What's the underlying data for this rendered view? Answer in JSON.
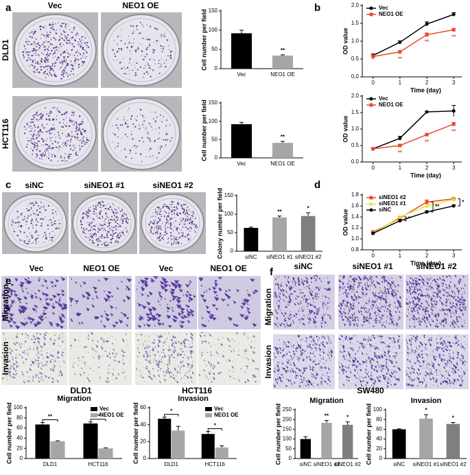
{
  "labels": {
    "panels": [
      "a",
      "b",
      "c",
      "d",
      "e",
      "f"
    ],
    "a_columns": [
      "Vec",
      "NEO1 OE"
    ],
    "a_rows": [
      "DLD1",
      "HCT116"
    ],
    "c_columns": [
      "siNC",
      "siNEO1 #1",
      "siNEO1 #2"
    ],
    "e_columns": [
      "Vec",
      "NEO1 OE",
      "Vec",
      "NEO1 OE"
    ],
    "e_rows": [
      "Migration",
      "Invasion"
    ],
    "e_cells": [
      "DLD1",
      "HCT116"
    ],
    "f_columns": [
      "siNC",
      "siNEO1 #1",
      "siNEO1 #2"
    ],
    "f_rows": [
      "Migration",
      "Invasion"
    ],
    "f_cell": "SW480"
  },
  "chart_data": [
    {
      "type": "bar",
      "ylabel": "Cell number per field",
      "categories": [
        "Vec",
        "NEO1 OE"
      ],
      "values": [
        92,
        34
      ],
      "errors": [
        8,
        2
      ],
      "colors": [
        "#000000",
        "#a6a6a6"
      ],
      "significance": [
        null,
        "**"
      ],
      "ylim": [
        0,
        150
      ],
      "yticks": [
        0,
        50,
        100,
        150
      ]
    },
    {
      "type": "bar",
      "ylabel": "Cell number per field",
      "categories": [
        "Vec",
        "NEO1 OE"
      ],
      "values": [
        92,
        41
      ],
      "errors": [
        5,
        4
      ],
      "colors": [
        "#000000",
        "#a6a6a6"
      ],
      "significance": [
        null,
        "**"
      ],
      "ylim": [
        0,
        150
      ],
      "yticks": [
        0,
        50,
        100,
        150
      ]
    },
    {
      "type": "line",
      "xlabel": "Time (day)",
      "ylabel": "OD value",
      "x": [
        0,
        1,
        2,
        3
      ],
      "xlim": [
        -0.4,
        3.3
      ],
      "xticks": [
        0,
        1,
        2,
        3
      ],
      "ylim": [
        0,
        2
      ],
      "yticks": [
        {
          "value": 0,
          "label": "0.0"
        },
        0.5,
        {
          "value": 1,
          "label": "1.0"
        },
        1.5,
        {
          "value": 2,
          "label": "2.0"
        }
      ],
      "legend": "upper left",
      "series": [
        {
          "name": "Vec",
          "color": "#000000",
          "marker": "circle",
          "values": [
            0.6,
            0.97,
            1.48,
            1.75
          ],
          "errors": [
            0.05,
            0.04,
            0.06,
            0.05
          ]
        },
        {
          "name": "NEO1 OE",
          "color": "#e8492c",
          "marker": "square",
          "values": [
            0.57,
            0.7,
            1.18,
            1.32
          ],
          "errors": [
            0.08,
            0.03,
            0.05,
            0.03
          ],
          "significance": [
            null,
            "**",
            "**",
            "**"
          ]
        }
      ]
    },
    {
      "type": "line",
      "xlabel": "Time (day)",
      "ylabel": "OD value",
      "x": [
        0,
        1,
        2,
        3
      ],
      "xlim": [
        -0.4,
        3.3
      ],
      "xticks": [
        0,
        1,
        2,
        3
      ],
      "ylim": [
        0,
        2
      ],
      "yticks": [
        {
          "value": 0,
          "label": "0.0"
        },
        0.5,
        {
          "value": 1,
          "label": "1.0"
        },
        1.5,
        {
          "value": 2,
          "label": "2.0"
        }
      ],
      "legend": "upper left",
      "series": [
        {
          "name": "Vec",
          "color": "#000000",
          "marker": "circle",
          "values": [
            0.4,
            0.72,
            1.52,
            1.55
          ],
          "errors": [
            0.03,
            0.06,
            0.01,
            0.17
          ]
        },
        {
          "name": "NEO1 OE",
          "color": "#e8492c",
          "marker": "square",
          "values": [
            0.4,
            0.5,
            0.83,
            1.15
          ],
          "errors": [
            0.03,
            0.04,
            0.03,
            0.05
          ],
          "significance": [
            null,
            "**",
            "**",
            "**"
          ]
        }
      ]
    },
    {
      "type": "bar",
      "ylabel": "Colony number per field",
      "categories": [
        "siNC",
        "siNEO1 #1",
        "siNEO1 #2"
      ],
      "values": [
        63,
        91,
        95
      ],
      "errors": [
        2,
        4,
        9
      ],
      "colors": [
        "#000000",
        "#a6a6a6",
        "#7f7f7f"
      ],
      "significance": [
        null,
        "**",
        "*"
      ],
      "ylim": [
        0,
        150
      ],
      "yticks": [
        0,
        50,
        100,
        150
      ]
    },
    {
      "type": "line",
      "xlabel": "Time (day)",
      "ylabel": "OD value",
      "x": [
        0,
        1,
        2,
        3
      ],
      "xlim": [
        -0.4,
        3.3
      ],
      "xticks": [
        0,
        1,
        2,
        3
      ],
      "ylim": [
        0.8,
        1.8
      ],
      "yticks": [
        0.8,
        {
          "value": 1,
          "label": "1.0"
        },
        1.2,
        1.4,
        1.6,
        1.8
      ],
      "legend": "upper left",
      "significance": [
        null,
        "*",
        "**",
        "*"
      ],
      "series": [
        {
          "name": "siNEO1 #2",
          "color": "#e8492c",
          "marker": "square",
          "values": [
            1.12,
            1.38,
            1.67,
            1.73
          ],
          "errors": [
            0.03,
            0.02,
            0.04,
            0.03
          ]
        },
        {
          "name": "siNEO1 #1",
          "color": "#f2e22e",
          "marker": "triangle",
          "values": [
            1.1,
            1.4,
            1.6,
            1.72
          ],
          "errors": [
            0.03,
            0.02,
            0.03,
            0.04
          ]
        },
        {
          "name": "siNC",
          "color": "#000000",
          "marker": "circle",
          "values": [
            1.1,
            1.33,
            1.49,
            1.6
          ],
          "errors": [
            0.02,
            0.02,
            0.02,
            0.02
          ]
        }
      ]
    },
    {
      "type": "bar",
      "title": "Migration",
      "ylabel": "Cell number per field",
      "categories": [
        "DLD1",
        "HCT116"
      ],
      "series": [
        {
          "name": "Vec",
          "color": "#000000",
          "values": [
            67,
            69
          ],
          "errors": [
            4,
            3
          ]
        },
        {
          "name": "NEO1 OE",
          "color": "#a6a6a6",
          "values": [
            34,
            20
          ],
          "errors": [
            1,
            1
          ]
        }
      ],
      "significance": [
        "**",
        "**"
      ],
      "ylim": [
        0,
        100
      ],
      "yticks": [
        0,
        20,
        40,
        60,
        80,
        100
      ],
      "legend": "upper right"
    },
    {
      "type": "bar",
      "title": "Invasion",
      "ylabel": "Cell number per field",
      "categories": [
        "DLD1",
        "HCT116"
      ],
      "series": [
        {
          "name": "Vec",
          "color": "#000000",
          "values": [
            47,
            29
          ],
          "errors": [
            2,
            3
          ]
        },
        {
          "name": "NEO1 OE",
          "color": "#a6a6a6",
          "values": [
            33,
            13
          ],
          "errors": [
            5,
            2
          ]
        }
      ],
      "significance": [
        "*",
        "*"
      ],
      "ylim": [
        0,
        60
      ],
      "yticks": [
        0,
        20,
        40,
        60
      ],
      "legend": "upper right"
    },
    {
      "type": "bar",
      "title": "Migration",
      "ylabel": "Cell number per field",
      "categories": [
        "siNC",
        "siNEO1 #1",
        "siNEO1 #2"
      ],
      "values": [
        100,
        183,
        173
      ],
      "errors": [
        12,
        12,
        15
      ],
      "colors": [
        "#000000",
        "#a6a6a6",
        "#7f7f7f"
      ],
      "significance": [
        null,
        "**",
        "*"
      ],
      "ylim": [
        0,
        250
      ],
      "yticks": [
        0,
        50,
        100,
        150,
        200,
        250
      ]
    },
    {
      "type": "bar",
      "title": "Invasion",
      "ylabel": "Cell number per field",
      "categories": [
        "siNC",
        "siNEO1 #1",
        "siNEO1 #2"
      ],
      "values": [
        60,
        82,
        71
      ],
      "errors": [
        1,
        8,
        3
      ],
      "colors": [
        "#000000",
        "#a6a6a6",
        "#7f7f7f"
      ],
      "significance": [
        null,
        "*",
        "*"
      ],
      "ylim": [
        0,
        100
      ],
      "yticks": [
        0,
        20,
        40,
        60,
        80,
        100
      ]
    }
  ]
}
